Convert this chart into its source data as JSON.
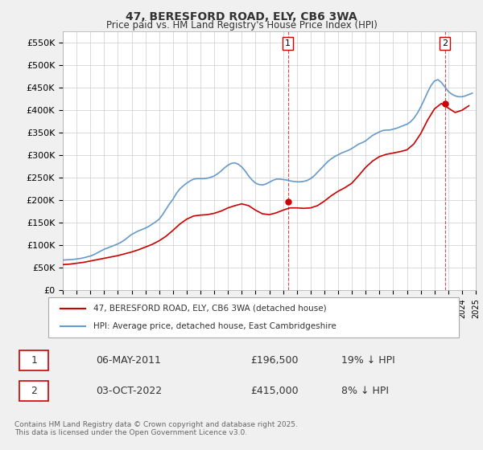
{
  "title": "47, BERESFORD ROAD, ELY, CB6 3WA",
  "subtitle": "Price paid vs. HM Land Registry's House Price Index (HPI)",
  "ylabel": "",
  "background_color": "#f0f0f0",
  "plot_bg_color": "#ffffff",
  "grid_color": "#cccccc",
  "red_color": "#cc0000",
  "blue_color": "#6699cc",
  "dashed_color": "#cc0000",
  "ylim": [
    0,
    575000
  ],
  "yticks": [
    0,
    50000,
    100000,
    150000,
    200000,
    250000,
    300000,
    350000,
    400000,
    450000,
    500000,
    550000
  ],
  "ytick_labels": [
    "£0",
    "£50K",
    "£100K",
    "£150K",
    "£200K",
    "£250K",
    "£300K",
    "£350K",
    "£400K",
    "£450K",
    "£500K",
    "£550K"
  ],
  "xmin_year": 1995,
  "xmax_year": 2025,
  "xticks": [
    1995,
    1996,
    1997,
    1998,
    1999,
    2000,
    2001,
    2002,
    2003,
    2004,
    2005,
    2006,
    2007,
    2008,
    2009,
    2010,
    2011,
    2012,
    2013,
    2014,
    2015,
    2016,
    2017,
    2018,
    2019,
    2020,
    2021,
    2022,
    2023,
    2024,
    2025
  ],
  "vline1_x": 2011.35,
  "vline2_x": 2022.76,
  "marker1_label": "1",
  "marker2_label": "2",
  "marker1_x": 2011.35,
  "marker1_y": 196500,
  "marker2_x": 2022.76,
  "marker2_y": 415000,
  "legend_line1": "47, BERESFORD ROAD, ELY, CB6 3WA (detached house)",
  "legend_line2": "HPI: Average price, detached house, East Cambridgeshire",
  "table_row1_num": "1",
  "table_row1_date": "06-MAY-2011",
  "table_row1_price": "£196,500",
  "table_row1_hpi": "19% ↓ HPI",
  "table_row2_num": "2",
  "table_row2_date": "03-OCT-2022",
  "table_row2_price": "£415,000",
  "table_row2_hpi": "8% ↓ HPI",
  "footer": "Contains HM Land Registry data © Crown copyright and database right 2025.\nThis data is licensed under the Open Government Licence v3.0.",
  "hpi_data_x": [
    1995.0,
    1995.25,
    1995.5,
    1995.75,
    1996.0,
    1996.25,
    1996.5,
    1996.75,
    1997.0,
    1997.25,
    1997.5,
    1997.75,
    1998.0,
    1998.25,
    1998.5,
    1998.75,
    1999.0,
    1999.25,
    1999.5,
    1999.75,
    2000.0,
    2000.25,
    2000.5,
    2000.75,
    2001.0,
    2001.25,
    2001.5,
    2001.75,
    2002.0,
    2002.25,
    2002.5,
    2002.75,
    2003.0,
    2003.25,
    2003.5,
    2003.75,
    2004.0,
    2004.25,
    2004.5,
    2004.75,
    2005.0,
    2005.25,
    2005.5,
    2005.75,
    2006.0,
    2006.25,
    2006.5,
    2006.75,
    2007.0,
    2007.25,
    2007.5,
    2007.75,
    2008.0,
    2008.25,
    2008.5,
    2008.75,
    2009.0,
    2009.25,
    2009.5,
    2009.75,
    2010.0,
    2010.25,
    2010.5,
    2010.75,
    2011.0,
    2011.25,
    2011.5,
    2011.75,
    2012.0,
    2012.25,
    2012.5,
    2012.75,
    2013.0,
    2013.25,
    2013.5,
    2013.75,
    2014.0,
    2014.25,
    2014.5,
    2014.75,
    2015.0,
    2015.25,
    2015.5,
    2015.75,
    2016.0,
    2016.25,
    2016.5,
    2016.75,
    2017.0,
    2017.25,
    2017.5,
    2017.75,
    2018.0,
    2018.25,
    2018.5,
    2018.75,
    2019.0,
    2019.25,
    2019.5,
    2019.75,
    2020.0,
    2020.25,
    2020.5,
    2020.75,
    2021.0,
    2021.25,
    2021.5,
    2021.75,
    2022.0,
    2022.25,
    2022.5,
    2022.75,
    2023.0,
    2023.25,
    2023.5,
    2023.75,
    2024.0,
    2024.25,
    2024.5,
    2024.75
  ],
  "hpi_data_y": [
    67000,
    67500,
    68000,
    68500,
    69500,
    70500,
    72000,
    74000,
    76000,
    79000,
    83000,
    87000,
    91000,
    94000,
    97000,
    100000,
    103000,
    107000,
    112000,
    118000,
    124000,
    128000,
    132000,
    135000,
    138000,
    142000,
    147000,
    152000,
    158000,
    168000,
    180000,
    192000,
    202000,
    215000,
    225000,
    232000,
    238000,
    243000,
    247000,
    248000,
    248000,
    248000,
    249000,
    251000,
    254000,
    259000,
    265000,
    272000,
    278000,
    282000,
    283000,
    280000,
    274000,
    265000,
    254000,
    245000,
    238000,
    235000,
    234000,
    236000,
    240000,
    244000,
    247000,
    247000,
    246000,
    245000,
    243000,
    242000,
    241000,
    241000,
    242000,
    244000,
    248000,
    254000,
    262000,
    270000,
    278000,
    286000,
    292000,
    297000,
    301000,
    305000,
    308000,
    311000,
    315000,
    320000,
    325000,
    328000,
    332000,
    338000,
    344000,
    348000,
    352000,
    355000,
    356000,
    356000,
    358000,
    360000,
    363000,
    366000,
    369000,
    374000,
    382000,
    393000,
    407000,
    423000,
    440000,
    455000,
    465000,
    468000,
    462000,
    452000,
    442000,
    436000,
    432000,
    430000,
    430000,
    432000,
    435000,
    438000
  ],
  "price_data_x": [
    1995.0,
    1995.5,
    1996.0,
    1996.5,
    1997.0,
    1997.5,
    1998.0,
    1998.5,
    1999.0,
    1999.5,
    2000.0,
    2000.5,
    2001.0,
    2001.5,
    2002.0,
    2002.5,
    2003.0,
    2003.5,
    2004.0,
    2004.5,
    2005.0,
    2005.5,
    2006.0,
    2006.5,
    2007.0,
    2007.5,
    2008.0,
    2008.5,
    2009.0,
    2009.5,
    2010.0,
    2010.5,
    2011.0,
    2011.5,
    2012.0,
    2012.5,
    2013.0,
    2013.5,
    2014.0,
    2014.5,
    2015.0,
    2015.5,
    2016.0,
    2016.5,
    2017.0,
    2017.5,
    2018.0,
    2018.5,
    2019.0,
    2019.5,
    2020.0,
    2020.5,
    2021.0,
    2021.5,
    2022.0,
    2022.5,
    2023.0,
    2023.5,
    2024.0,
    2024.5
  ],
  "price_data_y": [
    57000,
    58000,
    60000,
    62000,
    65000,
    68000,
    71000,
    74000,
    77000,
    81000,
    85000,
    90000,
    96000,
    102000,
    110000,
    120000,
    133000,
    147000,
    158000,
    165000,
    167000,
    168000,
    171000,
    176000,
    183000,
    188000,
    192000,
    188000,
    178000,
    170000,
    168000,
    172000,
    178000,
    183000,
    183000,
    182000,
    183000,
    188000,
    198000,
    210000,
    220000,
    228000,
    238000,
    255000,
    273000,
    287000,
    297000,
    302000,
    305000,
    308000,
    312000,
    325000,
    348000,
    378000,
    403000,
    415000,
    405000,
    395000,
    400000,
    410000
  ]
}
